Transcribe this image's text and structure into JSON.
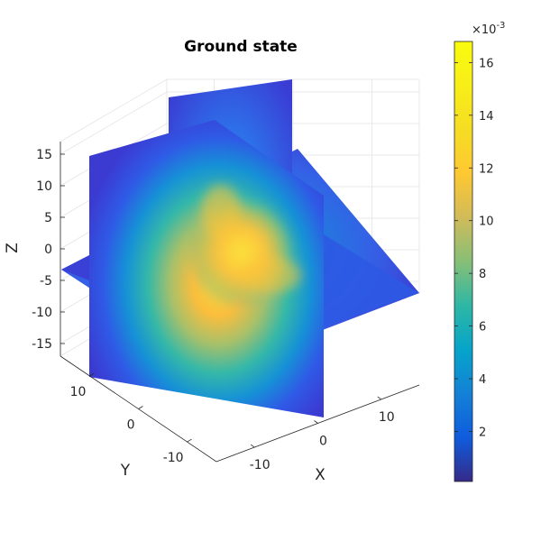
{
  "chart_data": {
    "type": "slice3d",
    "title": "Ground state",
    "xlabel": "X",
    "ylabel": "Y",
    "zlabel": "Z",
    "x_ticks": [
      "-10",
      "0",
      "10"
    ],
    "y_ticks": [
      "10",
      "0",
      "-10"
    ],
    "z_ticks": [
      "15",
      "10",
      "5",
      "0",
      "-5",
      "-10",
      "-15"
    ],
    "xlim": [
      -16,
      16
    ],
    "ylim": [
      -16,
      16
    ],
    "zlim": [
      -17,
      17
    ],
    "slices": {
      "x": 0,
      "y": 0,
      "z": 0
    },
    "grid": true,
    "colormap": "parula",
    "colorbar": {
      "location": "right",
      "ticks": [
        "2",
        "4",
        "6",
        "8",
        "10",
        "12",
        "14",
        "16"
      ],
      "exponent": "×10",
      "exponent_power": "-3",
      "range": [
        0.1,
        16.8
      ]
    },
    "peak_value": 16.5
  }
}
